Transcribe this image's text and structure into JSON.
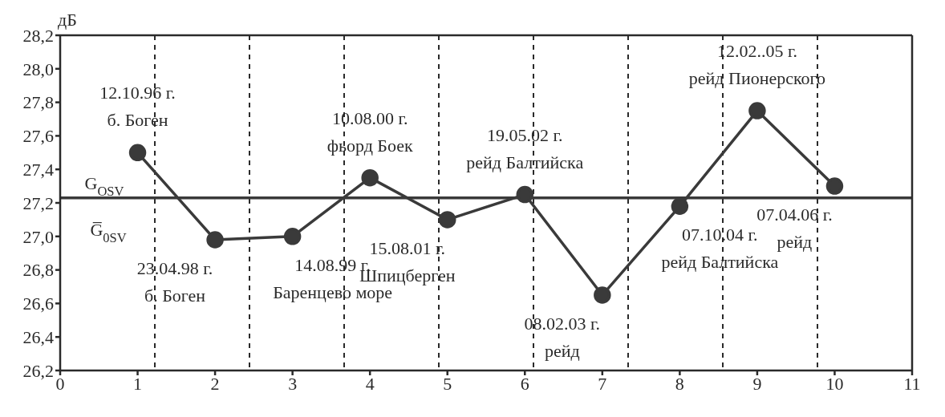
{
  "chart_data": {
    "type": "line",
    "ylabel": "дБ",
    "x": [
      1,
      2,
      3,
      4,
      5,
      6,
      7,
      8,
      9,
      10
    ],
    "series": [
      {
        "color": "#3a3a3a",
        "values": [
          27.5,
          26.98,
          27.0,
          27.35,
          27.1,
          27.25,
          26.65,
          27.18,
          27.75,
          27.3
        ]
      }
    ],
    "xlim": [
      0,
      11
    ],
    "xticks": [
      0,
      1,
      2,
      3,
      4,
      5,
      6,
      7,
      8,
      9,
      10,
      11
    ],
    "ylim": [
      26.2,
      28.2
    ],
    "yticks": [
      {
        "value": 26.2,
        "label": "26,2"
      },
      {
        "value": 26.4,
        "label": "26,4"
      },
      {
        "value": 26.6,
        "label": "26,6"
      },
      {
        "value": 26.8,
        "label": "26,8"
      },
      {
        "value": 27.0,
        "label": "27,0"
      },
      {
        "value": 27.2,
        "label": "27,2"
      },
      {
        "value": 27.4,
        "label": "27,4"
      },
      {
        "value": 27.6,
        "label": "27,6"
      },
      {
        "value": 27.8,
        "label": "27,8"
      },
      {
        "value": 28.0,
        "label": "28,0"
      },
      {
        "value": 28.2,
        "label": "28,2"
      }
    ],
    "grid": true,
    "marker": "circle",
    "line_style": "solid",
    "ref_lines": [
      {
        "axis": "y",
        "value": 27.23,
        "label": "G$_{OSV}$",
        "color": "#3a3a3a"
      }
    ],
    "annotations": [
      {
        "text": "12.10.96 г.",
        "x": 1,
        "y": 27.5
      },
      {
        "text": "б. Боген",
        "x": 1,
        "y": 27.5
      },
      {
        "text": "23.04.98 г.",
        "x": 2,
        "y": 26.98
      },
      {
        "text": "б. Боген",
        "x": 2,
        "y": 26.98
      },
      {
        "text": "14.08.99 г.",
        "x": 3,
        "y": 27.0
      },
      {
        "text": "Баренцево море",
        "x": 3,
        "y": 27.0
      },
      {
        "text": "10.08.00 г.",
        "x": 4,
        "y": 27.35
      },
      {
        "text": "фьорд Боек",
        "x": 4,
        "y": 27.35
      },
      {
        "text": "15.08.01 г.",
        "x": 5,
        "y": 27.1
      },
      {
        "text": "Шпицберген",
        "x": 5,
        "y": 27.1
      },
      {
        "text": "19.05.02 г.",
        "x": 6,
        "y": 27.25
      },
      {
        "text": "рейд Балтийска",
        "x": 6,
        "y": 27.25
      },
      {
        "text": "08.02.03 г.",
        "x": 7,
        "y": 26.65
      },
      {
        "text": "рейд",
        "x": 7,
        "y": 26.65
      },
      {
        "text": "07.10.04 г.",
        "x": 8,
        "y": 27.18
      },
      {
        "text": "рейд Балтийска",
        "x": 8,
        "y": 27.18
      },
      {
        "text": "12.02..05 г.",
        "x": 9,
        "y": 27.75
      },
      {
        "text": "рейд Пионерского",
        "x": 9,
        "y": 27.75
      },
      {
        "text": "07.04.06 г.",
        "x": 10,
        "y": 27.3
      },
      {
        "text": "рейд",
        "x": 10,
        "y": 27.3
      },
      {
        "text": "G̅$_{0SV}$",
        "y": 27.23
      }
    ]
  }
}
